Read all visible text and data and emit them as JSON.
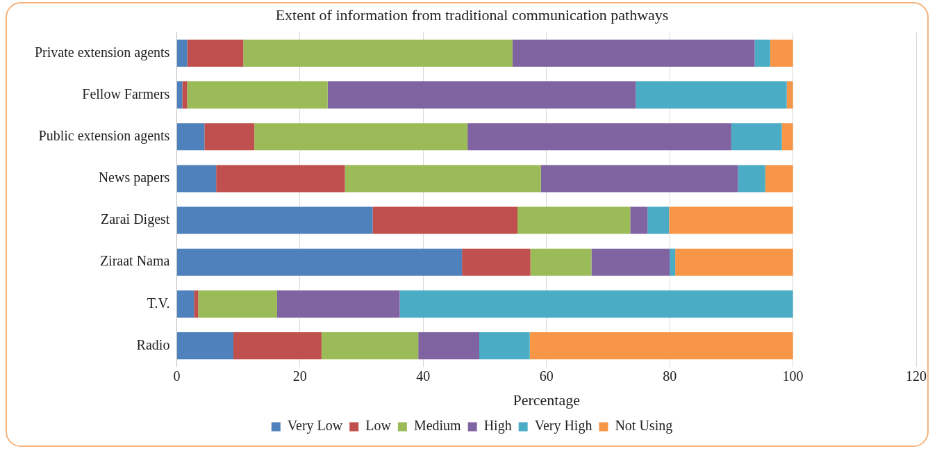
{
  "chart_data": {
    "type": "bar",
    "orientation": "horizontal",
    "stacked": true,
    "title": "Extent of information from traditional communication pathways",
    "xlabel": "Percentage",
    "categories": [
      "Private extension agents",
      "Fellow Farmers",
      "Public extension agents",
      "News papers",
      "Zarai Digest",
      "Ziraat Nama",
      "T.V.",
      "Radio"
    ],
    "series": [
      {
        "name": "Very Low",
        "color": "#4f81bd",
        "values": [
          1.7,
          0.9,
          4.5,
          6.4,
          31.8,
          46.3,
          2.8,
          9.2
        ]
      },
      {
        "name": "Low",
        "color": "#c0504d",
        "values": [
          9.1,
          0.8,
          8.1,
          20.9,
          23.5,
          11.1,
          0.7,
          14.3
        ]
      },
      {
        "name": "Medium",
        "color": "#9bbb59",
        "values": [
          43.7,
          22.8,
          34.6,
          31.8,
          18.3,
          9.9,
          12.8,
          15.7
        ]
      },
      {
        "name": "High",
        "color": "#8064a2",
        "values": [
          39.3,
          50,
          42.8,
          32,
          2.8,
          12.7,
          19.9,
          9.9
        ]
      },
      {
        "name": "Very High",
        "color": "#4bacc6",
        "values": [
          2.5,
          24.5,
          8.2,
          4.4,
          3.5,
          0.9,
          63.8,
          8.2
        ]
      },
      {
        "name": "Not Using",
        "color": "#f79646",
        "values": [
          3.7,
          1,
          1.8,
          4.5,
          20.1,
          19.1,
          0,
          42.7
        ]
      }
    ],
    "xlim": [
      0,
      120
    ],
    "xticks": [
      0,
      20,
      40,
      60,
      80,
      100,
      120
    ],
    "grid": "x",
    "legend": "bottom"
  }
}
